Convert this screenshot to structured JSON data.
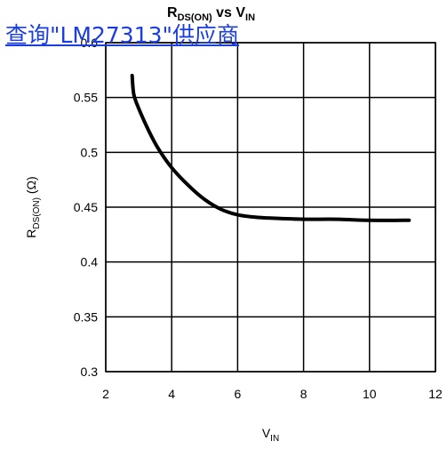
{
  "overlay_link": {
    "text": "查询\"LM27313\"供应商"
  },
  "chart_data": {
    "type": "line",
    "title_parts": {
      "main_r": "R",
      "sub_r": "DS(ON)",
      "mid": " vs V",
      "sub_v": "IN"
    },
    "xlabel": {
      "main": "V",
      "sub": "IN"
    },
    "ylabel": {
      "main": "R",
      "sub": "DS(ON)",
      "unit": " (Ω)"
    },
    "xlim": [
      2,
      12
    ],
    "ylim": [
      0.3,
      0.6
    ],
    "x_ticks": [
      "2",
      "4",
      "6",
      "8",
      "10",
      "12"
    ],
    "y_ticks": [
      "0.3",
      "0.35",
      "0.4",
      "0.45",
      "0.5",
      "0.55",
      "0.6"
    ],
    "grid": true,
    "series": [
      {
        "x": [
          2.8,
          2.85,
          3.0,
          3.3,
          3.6,
          4.0,
          4.5,
          5.0,
          5.5,
          6.0,
          6.5,
          7.0,
          8.0,
          9.0,
          10.0,
          11.0,
          11.2
        ],
        "y": [
          0.57,
          0.553,
          0.54,
          0.52,
          0.503,
          0.486,
          0.47,
          0.457,
          0.448,
          0.443,
          0.441,
          0.44,
          0.439,
          0.439,
          0.438,
          0.438,
          0.438
        ]
      }
    ]
  }
}
